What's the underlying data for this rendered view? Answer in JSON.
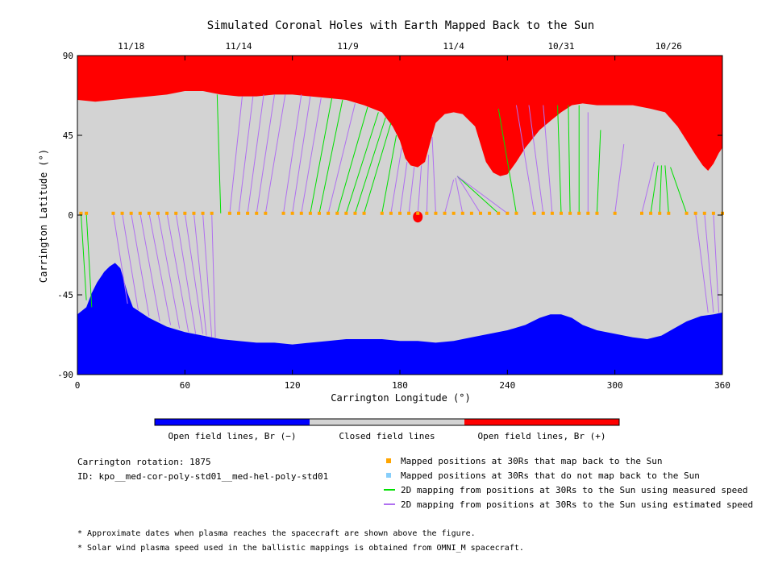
{
  "chart_data": {
    "type": "map",
    "title": "Simulated Coronal Holes with Earth Mapped Back to the Sun",
    "xlabel": "Carrington Longitude (°)",
    "ylabel": "Carrington Latitude (°)",
    "xlim": [
      0,
      360
    ],
    "ylim": [
      -90,
      90
    ],
    "x_ticks": [
      0,
      60,
      120,
      180,
      240,
      300,
      360
    ],
    "y_ticks": [
      -90,
      -45,
      0,
      45,
      90
    ],
    "top_dates": [
      {
        "label": "11/18",
        "lon": 30
      },
      {
        "label": "11/14",
        "lon": 90
      },
      {
        "label": "11/9",
        "lon": 151
      },
      {
        "label": "11/4",
        "lon": 210
      },
      {
        "label": "10/31",
        "lon": 270
      },
      {
        "label": "10/26",
        "lon": 330
      }
    ],
    "colorbar": {
      "labels": [
        "Open field lines, Br (−)",
        "Closed field lines",
        "Open field lines, Br (+)"
      ],
      "colors": [
        "#0000ff",
        "#d3d3d3",
        "#ff0000"
      ]
    },
    "north_boundary": [
      [
        0,
        65
      ],
      [
        10,
        64
      ],
      [
        20,
        65
      ],
      [
        30,
        66
      ],
      [
        40,
        67
      ],
      [
        50,
        68
      ],
      [
        60,
        70
      ],
      [
        70,
        70
      ],
      [
        80,
        68
      ],
      [
        90,
        67
      ],
      [
        100,
        67
      ],
      [
        110,
        68
      ],
      [
        120,
        68
      ],
      [
        130,
        67
      ],
      [
        140,
        66
      ],
      [
        150,
        65
      ],
      [
        160,
        62
      ],
      [
        170,
        58
      ],
      [
        176,
        50
      ],
      [
        180,
        42
      ],
      [
        183,
        32
      ],
      [
        186,
        28
      ],
      [
        190,
        27
      ],
      [
        194,
        30
      ],
      [
        198,
        45
      ],
      [
        200,
        52
      ],
      [
        205,
        57
      ],
      [
        210,
        58
      ],
      [
        215,
        57
      ],
      [
        222,
        50
      ],
      [
        228,
        30
      ],
      [
        232,
        24
      ],
      [
        236,
        22
      ],
      [
        240,
        23
      ],
      [
        245,
        30
      ],
      [
        250,
        38
      ],
      [
        258,
        48
      ],
      [
        265,
        54
      ],
      [
        270,
        58
      ],
      [
        276,
        62
      ],
      [
        282,
        63
      ],
      [
        290,
        62
      ],
      [
        300,
        62
      ],
      [
        310,
        62
      ],
      [
        320,
        60
      ],
      [
        328,
        58
      ],
      [
        335,
        50
      ],
      [
        340,
        42
      ],
      [
        345,
        34
      ],
      [
        349,
        28
      ],
      [
        352,
        25
      ],
      [
        355,
        29
      ],
      [
        358,
        35
      ],
      [
        360,
        38
      ]
    ],
    "south_boundary": [
      [
        0,
        -56
      ],
      [
        5,
        -52
      ],
      [
        8,
        -44
      ],
      [
        11,
        -38
      ],
      [
        15,
        -32
      ],
      [
        18,
        -29
      ],
      [
        21,
        -27
      ],
      [
        24,
        -30
      ],
      [
        26,
        -37
      ],
      [
        28,
        -44
      ],
      [
        31,
        -52
      ],
      [
        40,
        -58
      ],
      [
        50,
        -63
      ],
      [
        60,
        -66
      ],
      [
        70,
        -68
      ],
      [
        80,
        -70
      ],
      [
        90,
        -71
      ],
      [
        100,
        -72
      ],
      [
        110,
        -72
      ],
      [
        120,
        -73
      ],
      [
        130,
        -72
      ],
      [
        140,
        -71
      ],
      [
        150,
        -70
      ],
      [
        160,
        -70
      ],
      [
        170,
        -70
      ],
      [
        180,
        -71
      ],
      [
        190,
        -71
      ],
      [
        200,
        -72
      ],
      [
        210,
        -71
      ],
      [
        220,
        -69
      ],
      [
        230,
        -67
      ],
      [
        240,
        -65
      ],
      [
        250,
        -62
      ],
      [
        258,
        -58
      ],
      [
        264,
        -56
      ],
      [
        270,
        -56
      ],
      [
        276,
        -58
      ],
      [
        282,
        -62
      ],
      [
        290,
        -65
      ],
      [
        300,
        -67
      ],
      [
        310,
        -69
      ],
      [
        318,
        -70
      ],
      [
        326,
        -68
      ],
      [
        333,
        -64
      ],
      [
        340,
        -60
      ],
      [
        348,
        -57
      ],
      [
        355,
        -56
      ],
      [
        360,
        -55
      ]
    ],
    "mapped_positions": [
      [
        2,
        1
      ],
      [
        5,
        1
      ],
      [
        20,
        1
      ],
      [
        25,
        1
      ],
      [
        30,
        1
      ],
      [
        35,
        1
      ],
      [
        40,
        1
      ],
      [
        45,
        1
      ],
      [
        50,
        1
      ],
      [
        55,
        1
      ],
      [
        60,
        1
      ],
      [
        65,
        1
      ],
      [
        70,
        1
      ],
      [
        75,
        1
      ],
      [
        85,
        1
      ],
      [
        90,
        1
      ],
      [
        95,
        1
      ],
      [
        100,
        1
      ],
      [
        105,
        1
      ],
      [
        115,
        1
      ],
      [
        120,
        1
      ],
      [
        125,
        1
      ],
      [
        130,
        1
      ],
      [
        135,
        1
      ],
      [
        140,
        1
      ],
      [
        145,
        1
      ],
      [
        150,
        1
      ],
      [
        155,
        1
      ],
      [
        160,
        1
      ],
      [
        170,
        1
      ],
      [
        175,
        1
      ],
      [
        180,
        1
      ],
      [
        185,
        1
      ],
      [
        190,
        1
      ],
      [
        195,
        1
      ],
      [
        200,
        1
      ],
      [
        205,
        1
      ],
      [
        210,
        1
      ],
      [
        215,
        1
      ],
      [
        220,
        1
      ],
      [
        225,
        1
      ],
      [
        230,
        1
      ],
      [
        235,
        1
      ],
      [
        240,
        1
      ],
      [
        245,
        1
      ],
      [
        255,
        1
      ],
      [
        260,
        1
      ],
      [
        265,
        1
      ],
      [
        270,
        1
      ],
      [
        275,
        1
      ],
      [
        280,
        1
      ],
      [
        285,
        1
      ],
      [
        290,
        1
      ],
      [
        300,
        1
      ],
      [
        315,
        1
      ],
      [
        320,
        1
      ],
      [
        325,
        1
      ],
      [
        330,
        1
      ],
      [
        340,
        1
      ],
      [
        345,
        1
      ],
      [
        350,
        1
      ],
      [
        355,
        1
      ],
      [
        360,
        1
      ]
    ],
    "mapping_lines": [
      {
        "x0": 2,
        "y0": 1,
        "x1": 5,
        "y1": -48,
        "kind": "measured"
      },
      {
        "x0": 5,
        "y0": 1,
        "x1": 8,
        "y1": -52,
        "kind": "measured"
      },
      {
        "x0": 20,
        "y0": 1,
        "x1": 28,
        "y1": -50,
        "kind": "estimated"
      },
      {
        "x0": 25,
        "y0": 1,
        "x1": 34,
        "y1": -54,
        "kind": "estimated"
      },
      {
        "x0": 30,
        "y0": 1,
        "x1": 40,
        "y1": -57,
        "kind": "estimated"
      },
      {
        "x0": 35,
        "y0": 1,
        "x1": 46,
        "y1": -60,
        "kind": "estimated"
      },
      {
        "x0": 40,
        "y0": 1,
        "x1": 52,
        "y1": -62,
        "kind": "estimated"
      },
      {
        "x0": 45,
        "y0": 1,
        "x1": 57,
        "y1": -64,
        "kind": "estimated"
      },
      {
        "x0": 50,
        "y0": 1,
        "x1": 62,
        "y1": -66,
        "kind": "estimated"
      },
      {
        "x0": 55,
        "y0": 1,
        "x1": 66,
        "y1": -67,
        "kind": "estimated"
      },
      {
        "x0": 60,
        "y0": 1,
        "x1": 70,
        "y1": -67,
        "kind": "estimated"
      },
      {
        "x0": 65,
        "y0": 1,
        "x1": 72,
        "y1": -68,
        "kind": "estimated"
      },
      {
        "x0": 70,
        "y0": 1,
        "x1": 75,
        "y1": -69,
        "kind": "estimated"
      },
      {
        "x0": 75,
        "y0": 1,
        "x1": 77,
        "y1": -69,
        "kind": "estimated"
      },
      {
        "x0": 80,
        "y0": 1,
        "x1": 78,
        "y1": 68,
        "kind": "measured"
      },
      {
        "x0": 85,
        "y0": 1,
        "x1": 92,
        "y1": 67,
        "kind": "estimated"
      },
      {
        "x0": 90,
        "y0": 1,
        "x1": 98,
        "y1": 67,
        "kind": "estimated"
      },
      {
        "x0": 95,
        "y0": 1,
        "x1": 104,
        "y1": 68,
        "kind": "estimated"
      },
      {
        "x0": 100,
        "y0": 1,
        "x1": 110,
        "y1": 68,
        "kind": "estimated"
      },
      {
        "x0": 105,
        "y0": 1,
        "x1": 116,
        "y1": 68,
        "kind": "estimated"
      },
      {
        "x0": 115,
        "y0": 1,
        "x1": 125,
        "y1": 68,
        "kind": "estimated"
      },
      {
        "x0": 120,
        "y0": 1,
        "x1": 130,
        "y1": 67,
        "kind": "estimated"
      },
      {
        "x0": 125,
        "y0": 1,
        "x1": 136,
        "y1": 66,
        "kind": "estimated"
      },
      {
        "x0": 130,
        "y0": 1,
        "x1": 142,
        "y1": 66,
        "kind": "measured"
      },
      {
        "x0": 135,
        "y0": 1,
        "x1": 148,
        "y1": 65,
        "kind": "measured"
      },
      {
        "x0": 140,
        "y0": 1,
        "x1": 155,
        "y1": 63,
        "kind": "estimated"
      },
      {
        "x0": 145,
        "y0": 1,
        "x1": 162,
        "y1": 61,
        "kind": "measured"
      },
      {
        "x0": 150,
        "y0": 1,
        "x1": 168,
        "y1": 58,
        "kind": "measured"
      },
      {
        "x0": 155,
        "y0": 1,
        "x1": 172,
        "y1": 55,
        "kind": "measured"
      },
      {
        "x0": 160,
        "y0": 1,
        "x1": 175,
        "y1": 52,
        "kind": "measured"
      },
      {
        "x0": 170,
        "y0": 1,
        "x1": 178,
        "y1": 45,
        "kind": "measured"
      },
      {
        "x0": 175,
        "y0": 1,
        "x1": 181,
        "y1": 38,
        "kind": "estimated"
      },
      {
        "x0": 180,
        "y0": 1,
        "x1": 184,
        "y1": 30,
        "kind": "estimated"
      },
      {
        "x0": 185,
        "y0": 1,
        "x1": 188,
        "y1": 27,
        "kind": "estimated"
      },
      {
        "x0": 190,
        "y0": 1,
        "x1": 192,
        "y1": 28,
        "kind": "estimated"
      },
      {
        "x0": 195,
        "y0": 1,
        "x1": 196,
        "y1": 34,
        "kind": "estimated"
      },
      {
        "x0": 200,
        "y0": 1,
        "x1": 198,
        "y1": 44,
        "kind": "estimated"
      },
      {
        "x0": 205,
        "y0": 1,
        "x1": 210,
        "y1": 20,
        "kind": "estimated"
      },
      {
        "x0": 215,
        "y0": 1,
        "x1": 211,
        "y1": 21,
        "kind": "estimated"
      },
      {
        "x0": 225,
        "y0": 1,
        "x1": 212,
        "y1": 22,
        "kind": "estimated"
      },
      {
        "x0": 235,
        "y0": 1,
        "x1": 212,
        "y1": 22,
        "kind": "measured"
      },
      {
        "x0": 240,
        "y0": 1,
        "x1": 212,
        "y1": 22,
        "kind": "estimated"
      },
      {
        "x0": 245,
        "y0": 1,
        "x1": 235,
        "y1": 60,
        "kind": "measured"
      },
      {
        "x0": 255,
        "y0": 1,
        "x1": 245,
        "y1": 62,
        "kind": "estimated"
      },
      {
        "x0": 260,
        "y0": 1,
        "x1": 252,
        "y1": 62,
        "kind": "estimated"
      },
      {
        "x0": 265,
        "y0": 1,
        "x1": 260,
        "y1": 62,
        "kind": "estimated"
      },
      {
        "x0": 270,
        "y0": 1,
        "x1": 268,
        "y1": 62,
        "kind": "measured"
      },
      {
        "x0": 275,
        "y0": 1,
        "x1": 274,
        "y1": 62,
        "kind": "measured"
      },
      {
        "x0": 280,
        "y0": 1,
        "x1": 280,
        "y1": 62,
        "kind": "measured"
      },
      {
        "x0": 285,
        "y0": 1,
        "x1": 285,
        "y1": 58,
        "kind": "estimated"
      },
      {
        "x0": 290,
        "y0": 1,
        "x1": 292,
        "y1": 48,
        "kind": "measured"
      },
      {
        "x0": 300,
        "y0": 1,
        "x1": 305,
        "y1": 40,
        "kind": "estimated"
      },
      {
        "x0": 315,
        "y0": 1,
        "x1": 322,
        "y1": 30,
        "kind": "estimated"
      },
      {
        "x0": 320,
        "y0": 1,
        "x1": 324,
        "y1": 28,
        "kind": "measured"
      },
      {
        "x0": 325,
        "y0": 1,
        "x1": 326,
        "y1": 28,
        "kind": "measured"
      },
      {
        "x0": 330,
        "y0": 1,
        "x1": 328,
        "y1": 28,
        "kind": "measured"
      },
      {
        "x0": 340,
        "y0": 1,
        "x1": 331,
        "y1": 27,
        "kind": "measured"
      },
      {
        "x0": 345,
        "y0": 1,
        "x1": 352,
        "y1": -55,
        "kind": "estimated"
      },
      {
        "x0": 350,
        "y0": 1,
        "x1": 355,
        "y1": -55,
        "kind": "estimated"
      },
      {
        "x0": 355,
        "y0": 1,
        "x1": 358,
        "y1": -55,
        "kind": "estimated"
      },
      {
        "x0": 360,
        "y0": 1,
        "x1": 360,
        "y1": -55,
        "kind": "estimated"
      }
    ],
    "series_colors": {
      "mapped": "#ffa500",
      "unmapped": "#87cefa",
      "measured": "#00e000",
      "estimated": "#b070f0",
      "positive": "#ff0000",
      "negative": "#0000ff",
      "closed": "#d3d3d3"
    }
  },
  "info": {
    "rotation": "Carrington rotation: 1875",
    "id": "ID: kpo__med-cor-poly-std01__med-hel-poly-std01"
  },
  "legend": {
    "mapped": "Mapped positions at 30Rs that map back to the Sun",
    "unmapped": "Mapped positions at 30Rs that do not map back to the Sun",
    "measured": "2D mapping from positions at 30Rs to the Sun using measured speed",
    "estimated": "2D mapping from positions at 30Rs to the Sun using estimated speed"
  },
  "footnotes": {
    "n1": "* Approximate dates when plasma reaches the spacecraft are shown above the figure.",
    "n2": "* Solar wind plasma speed used in the ballistic mappings is obtained from OMNI_M spacecraft."
  }
}
